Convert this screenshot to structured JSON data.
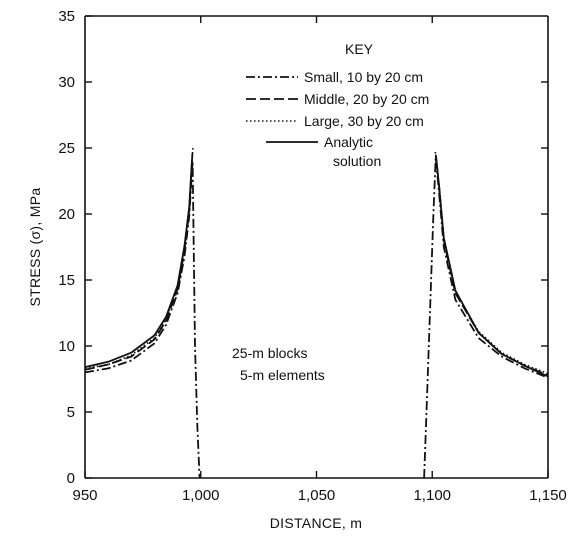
{
  "chart_data": {
    "type": "line",
    "xlabel": "DISTANCE, m",
    "ylabel": "STRESS (σ), MPa",
    "xlim": [
      950,
      1150
    ],
    "ylim": [
      0,
      35
    ],
    "xticks": [
      950,
      1000,
      1050,
      1100,
      1150
    ],
    "xtick_labels": [
      "950",
      "1,000",
      "1,050",
      "1,100",
      "1,150"
    ],
    "yticks": [
      0,
      5,
      10,
      15,
      20,
      25,
      30,
      35
    ],
    "ytick_labels": [
      "0",
      "5",
      "10",
      "15",
      "20",
      "25",
      "30",
      "35"
    ],
    "grid": false,
    "legend": {
      "title": "KEY",
      "placement": "top-right",
      "entries": [
        {
          "label": "Small, 10 by 20 cm",
          "style": "dash-dot"
        },
        {
          "label": "Middle, 20 by 20 cm",
          "style": "dashed"
        },
        {
          "label": "Large, 30 by 20 cm",
          "style": "dotted"
        },
        {
          "label": "Analytic",
          "label2": "solution",
          "style": "solid"
        }
      ]
    },
    "annotation": {
      "line1": "25-m blocks",
      "line2": "5-m elements"
    },
    "series": [
      {
        "name": "Small, 10 by 20 cm",
        "style": "dash-dot",
        "segments": [
          {
            "x": [
              950,
              960,
              970,
              980,
              985,
              990,
              993,
              995,
              996.5,
              997.5,
              998.5,
              999.5
            ],
            "y": [
              8.0,
              8.3,
              8.9,
              10.2,
              11.6,
              14.0,
              16.8,
              19.8,
              24.0,
              10,
              4,
              0
            ]
          },
          {
            "x": [
              1096.5,
              1097.5,
              1098.5,
              1099.5,
              1100.5,
              1101.5,
              1103,
              1105,
              1110,
              1120,
              1130,
              1140,
              1150
            ],
            "y": [
              0,
              5,
              10,
              15,
              20,
              24.3,
              21.5,
              17.5,
              13.5,
              10.6,
              9.2,
              8.3,
              7.6
            ]
          }
        ]
      },
      {
        "name": "Middle, 20 by 20 cm",
        "style": "dashed",
        "segments": [
          {
            "x": [
              950,
              960,
              970,
              980,
              985,
              990,
              993,
              995,
              996.3
            ],
            "y": [
              8.2,
              8.6,
              9.2,
              10.5,
              11.9,
              14.3,
              17.2,
              20.2,
              24.3
            ]
          },
          {
            "x": [
              1101.5,
              1103,
              1105,
              1110,
              1120,
              1130,
              1140,
              1150
            ],
            "y": [
              24.5,
              22.0,
              18.0,
              14.0,
              11.0,
              9.4,
              8.5,
              7.8
            ]
          }
        ]
      },
      {
        "name": "Large, 30 by 20 cm",
        "style": "dotted",
        "segments": [
          {
            "x": [
              950,
              960,
              970,
              980,
              985,
              990,
              993,
              995,
              996.6
            ],
            "y": [
              8.3,
              8.6,
              9.3,
              10.6,
              12.0,
              14.5,
              17.5,
              20.5,
              25.0
            ]
          },
          {
            "x": [
              1101.3,
              1103,
              1105,
              1110,
              1120,
              1130,
              1140,
              1150
            ],
            "y": [
              24.7,
              22.2,
              18.2,
              14.1,
              11.1,
              9.5,
              8.6,
              7.9
            ]
          }
        ]
      },
      {
        "name": "Analytic solution",
        "style": "solid",
        "segments": [
          {
            "x": [
              950,
              960,
              970,
              980,
              985,
              990,
              993,
              995,
              996.4
            ],
            "y": [
              8.4,
              8.8,
              9.5,
              10.8,
              12.2,
              14.6,
              17.6,
              20.5,
              24.6
            ]
          },
          {
            "x": [
              1101.6,
              1103,
              1105,
              1110,
              1120,
              1130,
              1140,
              1150
            ],
            "y": [
              24.4,
              22.0,
              18.2,
              14.2,
              11.0,
              9.4,
              8.5,
              7.7
            ]
          }
        ]
      }
    ]
  }
}
